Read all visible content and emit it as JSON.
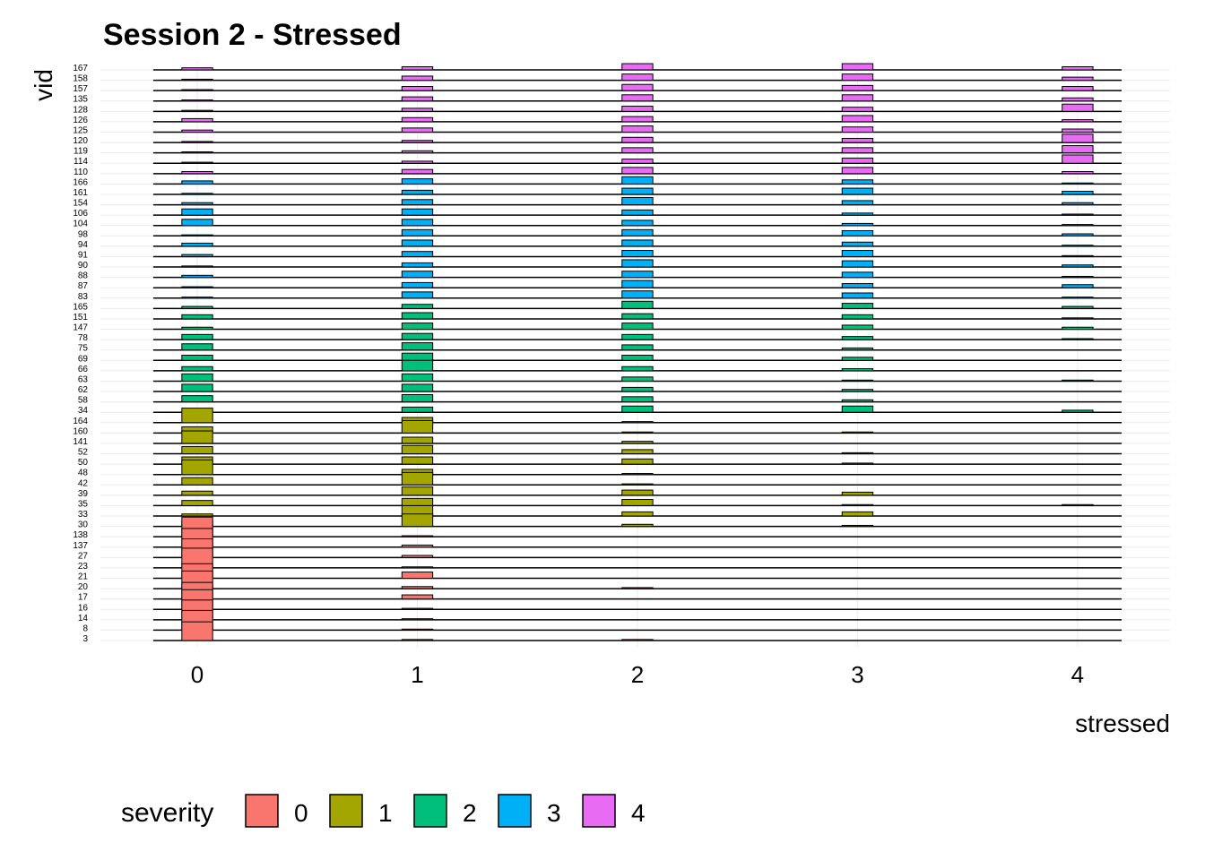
{
  "chart_data": {
    "type": "ridgeline",
    "title": "Session 2 - Stressed",
    "x_label": "stressed",
    "y_label": "vid",
    "legend_title": "severity",
    "x": [
      0,
      1,
      2,
      3,
      4
    ],
    "xlim": [
      -0.44,
      4.42
    ],
    "xticks": [
      0,
      1,
      2,
      3,
      4
    ],
    "grid": true,
    "legend_position": "bottom",
    "series": [
      {
        "name": "0",
        "color": "#F8766D",
        "categories": [
          "138",
          "137",
          "27",
          "23",
          "21",
          "20",
          "17",
          "16",
          "14",
          "8",
          "3"
        ],
        "values": [
          [
            0.95,
            0.05,
            0,
            0,
            0
          ],
          [
            0.9,
            0.1,
            0,
            0,
            0
          ],
          [
            0.9,
            0.1,
            0,
            0,
            0
          ],
          [
            0.95,
            0.05,
            0,
            0,
            0
          ],
          [
            0.7,
            0.3,
            0,
            0,
            0
          ],
          [
            0.85,
            0.1,
            0.05,
            0,
            0
          ],
          [
            0.8,
            0.2,
            0,
            0,
            0
          ],
          [
            0.95,
            0.05,
            0,
            0,
            0
          ],
          [
            0.95,
            0.05,
            0,
            0,
            0
          ],
          [
            0.95,
            0.05,
            0,
            0,
            0
          ],
          [
            0.9,
            0.05,
            0.05,
            0,
            0
          ]
        ]
      },
      {
        "name": "1",
        "color": "#A3A500",
        "categories": [
          "164",
          "160",
          "141",
          "52",
          "50",
          "48",
          "42",
          "39",
          "35",
          "33",
          "30"
        ],
        "values": [
          [
            0.7,
            0.25,
            0.05,
            0,
            0
          ],
          [
            0.3,
            0.6,
            0.05,
            0.05,
            0
          ],
          [
            0.6,
            0.3,
            0.1,
            0,
            0
          ],
          [
            0.35,
            0.4,
            0.2,
            0.05,
            0
          ],
          [
            0.35,
            0.35,
            0.25,
            0.05,
            0
          ],
          [
            0.7,
            0.25,
            0.05,
            0,
            0
          ],
          [
            0.35,
            0.6,
            0.05,
            0,
            0
          ],
          [
            0.2,
            0.4,
            0.25,
            0.15,
            0
          ],
          [
            0.25,
            0.35,
            0.3,
            0.05,
            0.05
          ],
          [
            0.1,
            0.5,
            0.2,
            0.2,
            0
          ],
          [
            0.25,
            0.6,
            0.1,
            0.05,
            0
          ]
        ]
      },
      {
        "name": "2",
        "color": "#00BF7D",
        "categories": [
          "165",
          "151",
          "147",
          "78",
          "75",
          "69",
          "66",
          "63",
          "62",
          "58",
          "34"
        ],
        "values": [
          [
            0.1,
            0.2,
            0.35,
            0.25,
            0.1
          ],
          [
            0.2,
            0.3,
            0.25,
            0.2,
            0.05
          ],
          [
            0.1,
            0.3,
            0.3,
            0.2,
            0.1
          ],
          [
            0.25,
            0.3,
            0.25,
            0.15,
            0.05
          ],
          [
            0.3,
            0.35,
            0.25,
            0.1,
            0
          ],
          [
            0.25,
            0.35,
            0.25,
            0.15,
            0
          ],
          [
            0.2,
            0.5,
            0.2,
            0.1,
            0
          ],
          [
            0.35,
            0.35,
            0.2,
            0.05,
            0.05
          ],
          [
            0.35,
            0.35,
            0.2,
            0.1,
            0
          ],
          [
            0.3,
            0.35,
            0.25,
            0.1,
            0
          ],
          [
            0.05,
            0.25,
            0.3,
            0.3,
            0.1
          ]
        ]
      },
      {
        "name": "3",
        "color": "#00B0F6",
        "categories": [
          "166",
          "161",
          "154",
          "106",
          "104",
          "98",
          "94",
          "91",
          "90",
          "88",
          "87",
          "83"
        ],
        "values": [
          [
            0.15,
            0.25,
            0.35,
            0.2,
            0.05
          ],
          [
            0.05,
            0.2,
            0.3,
            0.3,
            0.15
          ],
          [
            0.1,
            0.25,
            0.35,
            0.2,
            0.1
          ],
          [
            0.3,
            0.3,
            0.25,
            0.1,
            0.05
          ],
          [
            0.3,
            0.3,
            0.25,
            0.1,
            0.05
          ],
          [
            0.05,
            0.3,
            0.3,
            0.25,
            0.1
          ],
          [
            0.15,
            0.3,
            0.3,
            0.2,
            0.05
          ],
          [
            0.1,
            0.25,
            0.3,
            0.3,
            0.05
          ],
          [
            0.05,
            0.2,
            0.35,
            0.3,
            0.1
          ],
          [
            0.1,
            0.3,
            0.3,
            0.25,
            0.05
          ],
          [
            0.05,
            0.25,
            0.35,
            0.2,
            0.15
          ],
          [
            0.05,
            0.3,
            0.35,
            0.25,
            0.05
          ]
        ]
      },
      {
        "name": "4",
        "color": "#E76BF3",
        "categories": [
          "167",
          "158",
          "157",
          "135",
          "128",
          "126",
          "125",
          "120",
          "119",
          "114",
          "110"
        ],
        "values": [
          [
            0.1,
            0.15,
            0.3,
            0.3,
            0.15
          ],
          [
            0.05,
            0.2,
            0.3,
            0.3,
            0.15
          ],
          [
            0.05,
            0.2,
            0.3,
            0.25,
            0.2
          ],
          [
            0.05,
            0.2,
            0.3,
            0.3,
            0.15
          ],
          [
            0.05,
            0.15,
            0.25,
            0.2,
            0.35
          ],
          [
            0.15,
            0.2,
            0.25,
            0.3,
            0.1
          ],
          [
            0.1,
            0.2,
            0.3,
            0.25,
            0.15
          ],
          [
            0.05,
            0.1,
            0.25,
            0.2,
            0.4
          ],
          [
            0.05,
            0.1,
            0.25,
            0.25,
            0.35
          ],
          [
            0.05,
            0.1,
            0.2,
            0.25,
            0.4
          ],
          [
            0.1,
            0.2,
            0.3,
            0.3,
            0.1
          ]
        ]
      }
    ]
  }
}
